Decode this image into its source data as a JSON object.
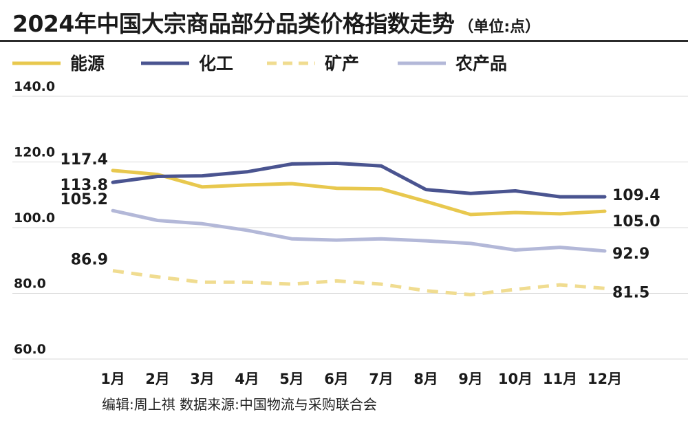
{
  "header": {
    "title": "2024年中国大宗商品部分品类价格指数走势",
    "unit": "（单位:点）"
  },
  "footer": {
    "credit": "编辑:周上祺  数据来源:中国物流与采购联合会"
  },
  "colors": {
    "energy": "#e8c84e",
    "chemical": "#4a5490",
    "mining": "#f0dc90",
    "agri": "#b3b8d8",
    "gridline": "#d9d9d9"
  },
  "chart_data": {
    "type": "line",
    "categories": [
      "1月",
      "2月",
      "3月",
      "4月",
      "5月",
      "6月",
      "7月",
      "8月",
      "9月",
      "10月",
      "11月",
      "12月"
    ],
    "ylim": [
      60,
      140
    ],
    "yticks": [
      "60.0",
      "80.0",
      "100.0",
      "120.0",
      "140.0"
    ],
    "grid": true,
    "legend_position": "top",
    "series": [
      {
        "name": "能源",
        "style": "solid",
        "color": "#e8c84e",
        "values": [
          117.4,
          116.2,
          112.4,
          113.0,
          113.4,
          112.0,
          111.8,
          108.0,
          104.0,
          104.6,
          104.2,
          105.0
        ],
        "start_label": "117.4",
        "end_label": "105.0"
      },
      {
        "name": "化工",
        "style": "solid",
        "color": "#4a5490",
        "values": [
          113.8,
          115.6,
          115.8,
          117.0,
          119.4,
          119.6,
          118.8,
          111.6,
          110.4,
          111.2,
          109.4,
          109.4
        ],
        "start_label": "113.8",
        "end_label": "109.4"
      },
      {
        "name": "矿产",
        "style": "dashed",
        "color": "#f0dc90",
        "values": [
          86.9,
          85.0,
          83.4,
          83.4,
          82.8,
          83.8,
          82.8,
          80.8,
          79.6,
          81.2,
          82.6,
          81.5
        ],
        "start_label": "86.9",
        "end_label": "81.5"
      },
      {
        "name": "农产品",
        "style": "solid",
        "color": "#b3b8d8",
        "values": [
          105.2,
          102.2,
          101.2,
          99.2,
          96.6,
          96.2,
          96.6,
          96.0,
          95.2,
          93.2,
          94.0,
          92.9
        ],
        "start_label": "105.2",
        "end_label": "92.9"
      }
    ]
  }
}
